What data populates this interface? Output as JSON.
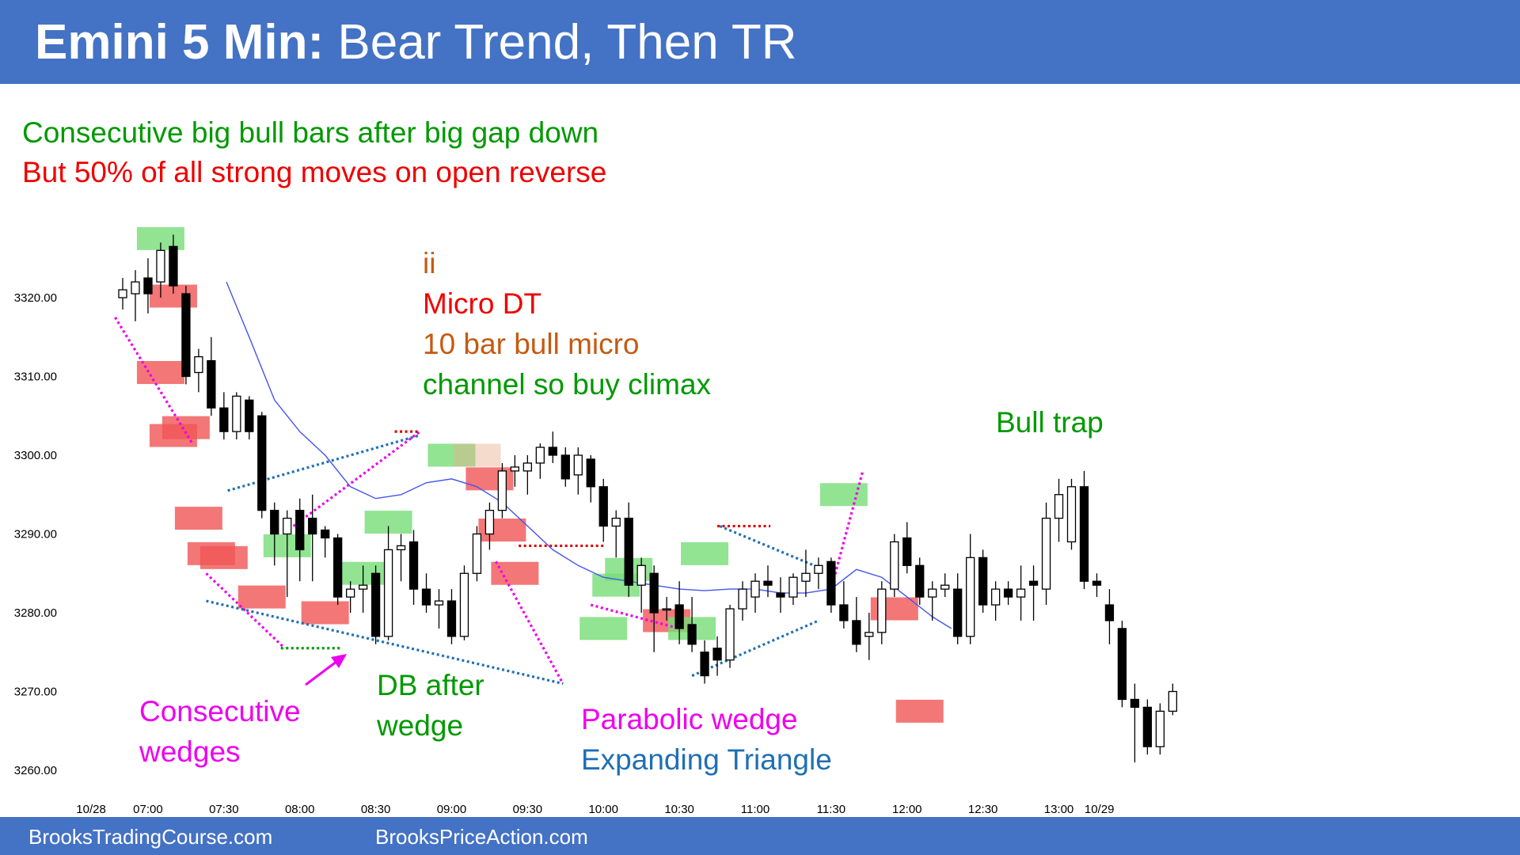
{
  "header": {
    "title_bold": "Emini 5 Min:",
    "title_rest": " Bear Trend, Then TR"
  },
  "notes": {
    "line1": "Consecutive big bull bars after big gap down",
    "line2": "But 50% of all strong moves on open reverse"
  },
  "footer": {
    "link1": "BrooksTradingCourse.com",
    "link2": "BrooksPriceAction.com"
  },
  "colors": {
    "header_bg": "#4472C4",
    "green_text": "#009900",
    "red_text": "#EE0000",
    "orange_text": "#C55A11",
    "magenta_text": "#EE00EE",
    "blue_text": "#1F6FB5",
    "ema": "#4455EE",
    "bull_highlight": "#77DD77",
    "bear_highlight": "#F05555"
  },
  "chart_data": {
    "type": "candlestick",
    "title": "Emini 5 Min: Bear Trend, Then TR",
    "ylim": [
      3258,
      3331
    ],
    "yticks": [
      "3260.00",
      "3270.00",
      "3280.00",
      "3290.00",
      "3300.00",
      "3310.00",
      "3320.00"
    ],
    "xticks": [
      "10/28",
      "07:00",
      "07:30",
      "08:00",
      "08:30",
      "09:00",
      "09:30",
      "10:00",
      "10:30",
      "11:00",
      "11:30",
      "12:00",
      "12:30",
      "13:00",
      "10/29"
    ],
    "bars": [
      [
        3320.0,
        3322.5,
        3318.5,
        3321.0
      ],
      [
        3320.5,
        3323.5,
        3317.0,
        3322.0
      ],
      [
        3322.5,
        3325.0,
        3318.0,
        3320.5
      ],
      [
        3322.0,
        3327.0,
        3320.0,
        3326.0
      ],
      [
        3326.5,
        3328.0,
        3320.5,
        3321.5
      ],
      [
        3320.5,
        3321.5,
        3309.0,
        3310.0
      ],
      [
        3310.5,
        3313.5,
        3308.0,
        3312.5
      ],
      [
        3312.0,
        3315.0,
        3305.0,
        3306.0
      ],
      [
        3306.0,
        3308.0,
        3302.0,
        3303.0
      ],
      [
        3303.0,
        3308.0,
        3302.0,
        3307.5
      ],
      [
        3307.0,
        3307.5,
        3302.0,
        3303.0
      ],
      [
        3305.0,
        3305.5,
        3292.0,
        3293.0
      ],
      [
        3293.0,
        3294.0,
        3286.0,
        3290.0
      ],
      [
        3290.0,
        3293.0,
        3282.0,
        3292.0
      ],
      [
        3293.0,
        3294.5,
        3284.0,
        3288.0
      ],
      [
        3292.0,
        3295.0,
        3284.0,
        3290.0
      ],
      [
        3290.5,
        3291.0,
        3287.0,
        3289.5
      ],
      [
        3289.5,
        3290.0,
        3281.0,
        3282.0
      ],
      [
        3282.0,
        3284.0,
        3280.0,
        3283.0
      ],
      [
        3283.0,
        3286.0,
        3280.0,
        3283.5
      ],
      [
        3285.0,
        3286.0,
        3276.0,
        3277.0
      ],
      [
        3277.0,
        3291.0,
        3276.5,
        3288.0
      ],
      [
        3288.0,
        3290.0,
        3284.0,
        3288.5
      ],
      [
        3289.0,
        3290.5,
        3281.0,
        3283.0
      ],
      [
        3283.0,
        3285.0,
        3280.0,
        3281.0
      ],
      [
        3281.0,
        3283.0,
        3278.0,
        3281.5
      ],
      [
        3281.5,
        3283.0,
        3276.0,
        3277.0
      ],
      [
        3277.0,
        3286.0,
        3276.5,
        3285.0
      ],
      [
        3285.0,
        3291.0,
        3284.0,
        3290.0
      ],
      [
        3290.0,
        3294.0,
        3288.0,
        3293.0
      ],
      [
        3293.0,
        3299.0,
        3292.0,
        3298.0
      ],
      [
        3298.0,
        3300.0,
        3296.0,
        3298.5
      ],
      [
        3298.0,
        3300.0,
        3295.0,
        3299.0
      ],
      [
        3299.0,
        3301.5,
        3297.0,
        3301.0
      ],
      [
        3301.0,
        3303.0,
        3299.0,
        3300.0
      ],
      [
        3300.0,
        3301.0,
        3296.0,
        3297.0
      ],
      [
        3297.5,
        3301.0,
        3295.0,
        3300.0
      ],
      [
        3299.5,
        3300.0,
        3294.0,
        3296.0
      ],
      [
        3296.0,
        3297.0,
        3289.0,
        3291.0
      ],
      [
        3291.0,
        3293.0,
        3287.0,
        3292.0
      ],
      [
        3292.0,
        3294.0,
        3282.0,
        3283.5
      ],
      [
        3283.5,
        3287.0,
        3280.0,
        3286.0
      ],
      [
        3285.0,
        3286.0,
        3275.0,
        3280.0
      ],
      [
        3280.5,
        3282.0,
        3279.0,
        3280.5
      ],
      [
        3281.0,
        3284.0,
        3276.0,
        3278.0
      ],
      [
        3278.5,
        3282.0,
        3275.0,
        3276.0
      ],
      [
        3275.0,
        3276.5,
        3271.0,
        3272.0
      ],
      [
        3275.5,
        3277.0,
        3272.0,
        3274.0
      ],
      [
        3274.0,
        3281.0,
        3273.0,
        3280.5
      ],
      [
        3280.5,
        3284.0,
        3279.0,
        3283.0
      ],
      [
        3282.0,
        3285.0,
        3280.0,
        3284.0
      ],
      [
        3284.0,
        3286.0,
        3282.0,
        3283.5
      ],
      [
        3282.5,
        3284.5,
        3280.0,
        3282.0
      ],
      [
        3282.0,
        3285.0,
        3281.0,
        3284.5
      ],
      [
        3284.0,
        3288.0,
        3282.0,
        3285.0
      ],
      [
        3285.0,
        3287.0,
        3283.0,
        3286.0
      ],
      [
        3286.5,
        3287.0,
        3280.0,
        3281.0
      ],
      [
        3281.0,
        3284.0,
        3278.0,
        3279.0
      ],
      [
        3279.0,
        3282.0,
        3275.0,
        3276.0
      ],
      [
        3277.0,
        3280.0,
        3274.0,
        3277.5
      ],
      [
        3277.5,
        3284.0,
        3276.0,
        3283.0
      ],
      [
        3283.0,
        3290.0,
        3282.0,
        3289.0
      ],
      [
        3289.5,
        3291.5,
        3285.0,
        3286.0
      ],
      [
        3286.0,
        3287.0,
        3281.0,
        3282.0
      ],
      [
        3282.0,
        3284.0,
        3279.0,
        3283.0
      ],
      [
        3283.0,
        3285.0,
        3282.0,
        3283.5
      ],
      [
        3283.0,
        3285.0,
        3276.0,
        3277.0
      ],
      [
        3277.0,
        3290.0,
        3276.0,
        3287.0
      ],
      [
        3287.0,
        3288.0,
        3280.0,
        3281.0
      ],
      [
        3281.0,
        3284.0,
        3279.0,
        3283.0
      ],
      [
        3283.0,
        3284.0,
        3281.0,
        3282.0
      ],
      [
        3282.0,
        3286.0,
        3279.0,
        3283.0
      ],
      [
        3284.0,
        3286.0,
        3279.0,
        3283.5
      ],
      [
        3283.0,
        3294.0,
        3281.0,
        3292.0
      ],
      [
        3292.0,
        3297.0,
        3289.0,
        3295.0
      ],
      [
        3289.0,
        3297.0,
        3288.0,
        3296.0
      ],
      [
        3296.0,
        3298.0,
        3283.0,
        3284.0
      ],
      [
        3284.0,
        3285.0,
        3282.0,
        3283.5
      ],
      [
        3281.0,
        3283.0,
        3276.0,
        3279.0
      ],
      [
        3278.0,
        3279.0,
        3268.0,
        3269.0
      ],
      [
        3269.0,
        3271.0,
        3261.0,
        3268.0
      ],
      [
        3268.0,
        3269.0,
        3262.0,
        3263.0
      ],
      [
        3263.0,
        3268.5,
        3262.0,
        3267.5
      ],
      [
        3267.5,
        3271.0,
        3267.0,
        3270.0
      ]
    ],
    "annotations": [
      {
        "text": "ii",
        "color": "orange"
      },
      {
        "text": "Micro DT",
        "color": "red"
      },
      {
        "text": "10 bar bull micro",
        "color": "orange"
      },
      {
        "text": "channel so buy climax",
        "color": "green"
      },
      {
        "text": "Bull trap",
        "color": "green"
      },
      {
        "text": "Consecutive",
        "color": "magenta"
      },
      {
        "text": "wedges",
        "color": "magenta"
      },
      {
        "text": "DB after",
        "color": "green"
      },
      {
        "text": "wedge",
        "color": "green"
      },
      {
        "text": "Parabolic wedge",
        "color": "magenta"
      },
      {
        "text": "Expanding Triangle",
        "color": "blue"
      }
    ]
  }
}
